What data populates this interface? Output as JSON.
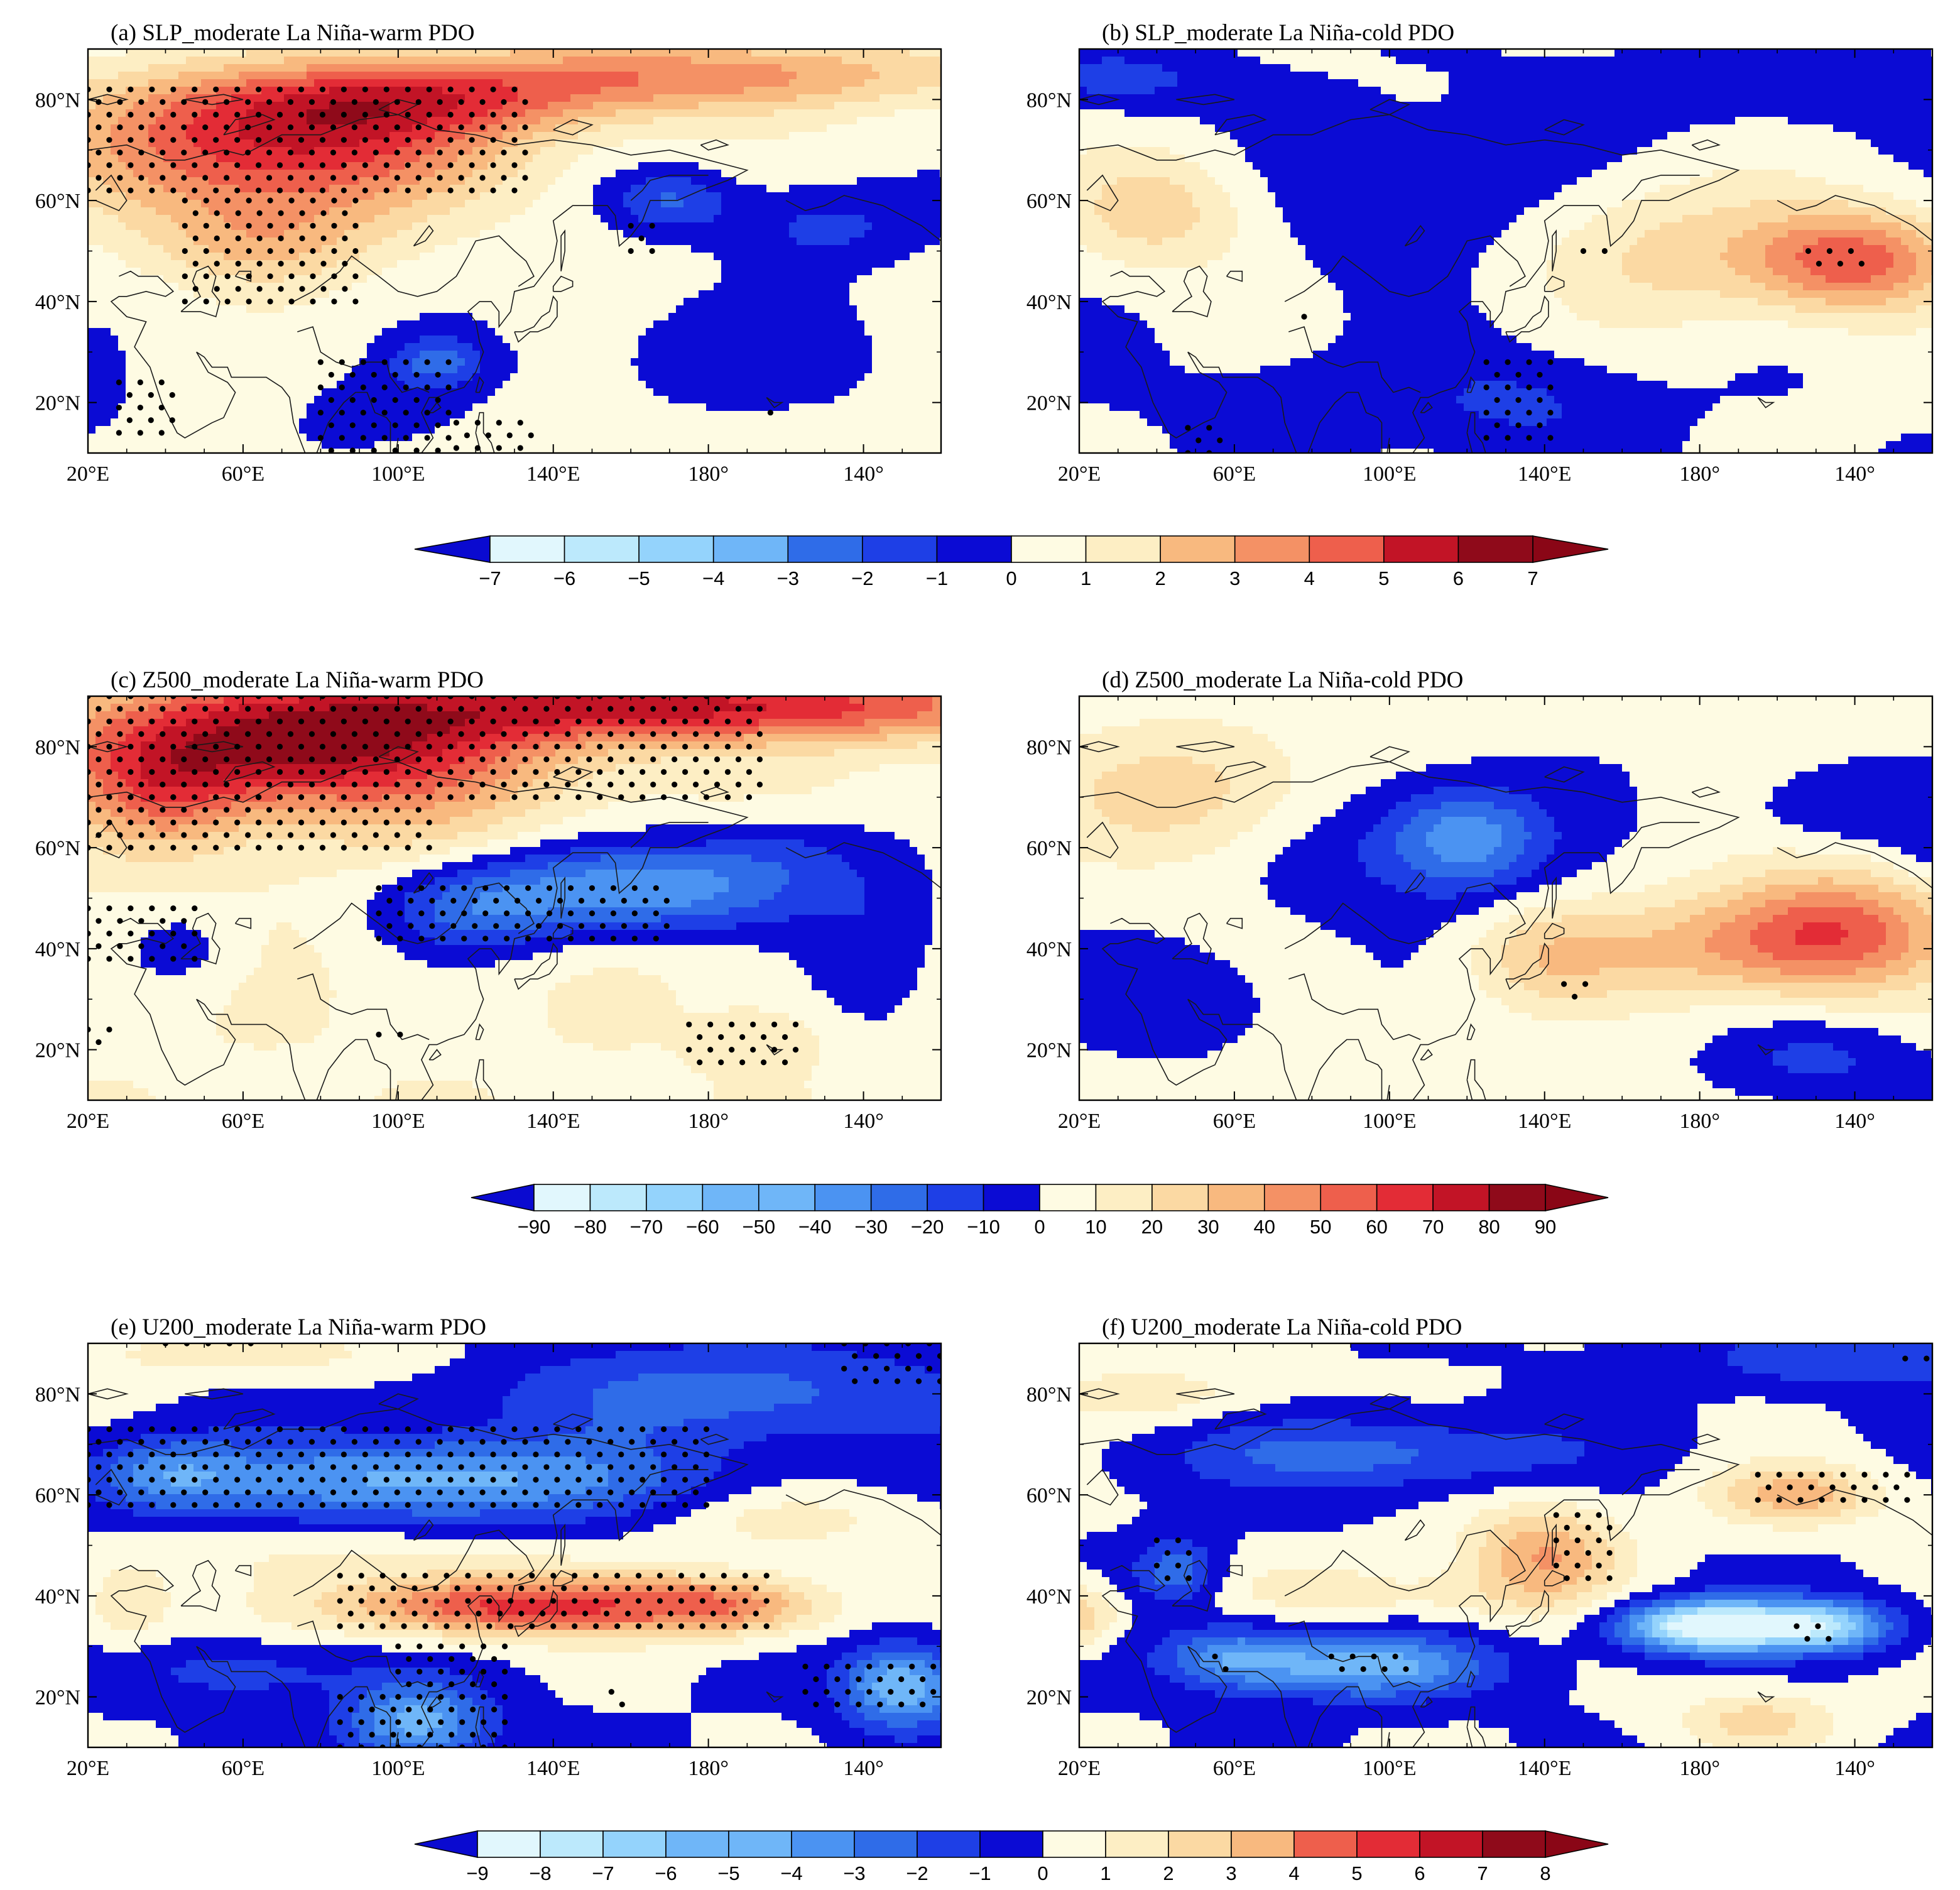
{
  "figure": {
    "panels": [
      {
        "id": "a",
        "title": "(a) SLP_moderate La Niña-warm PDO",
        "variable": "SLP",
        "case": "moderate La Niña-warm PDO"
      },
      {
        "id": "b",
        "title": "(b) SLP_moderate La Niña-cold PDO",
        "variable": "SLP",
        "case": "moderate La Niña-cold PDO"
      },
      {
        "id": "c",
        "title": "(c) Z500_moderate La Niña-warm PDO",
        "variable": "Z500",
        "case": "moderate La Niña-warm PDO"
      },
      {
        "id": "d",
        "title": "(d) Z500_moderate La Niña-cold PDO",
        "variable": "Z500",
        "case": "moderate La Niña-cold PDO"
      },
      {
        "id": "e",
        "title": "(e) U200_moderate La Niña-warm PDO",
        "variable": "U200",
        "case": "moderate La Niña-warm PDO"
      },
      {
        "id": "f",
        "title": "(f) U200_moderate La Niña-cold PDO",
        "variable": "U200",
        "case": "moderate La Niña-cold PDO"
      }
    ],
    "lon_ticks": [
      "20°E",
      "60°E",
      "100°E",
      "140°E",
      "180°",
      "140°"
    ],
    "lat_ticks": [
      "80°N",
      "60°N",
      "40°N",
      "20°N"
    ],
    "colorbars": [
      {
        "id": "slp",
        "labels": [
          "−7",
          "−6",
          "−5",
          "−4",
          "−3",
          "−2",
          "−1",
          "0",
          "1",
          "2",
          "3",
          "4",
          "5",
          "6",
          "7"
        ]
      },
      {
        "id": "z500",
        "labels": [
          "−90",
          "−80",
          "−70",
          "−60",
          "−50",
          "−40",
          "−30",
          "−20",
          "−10",
          "0",
          "10",
          "20",
          "30",
          "40",
          "50",
          "60",
          "70",
          "80",
          "90"
        ]
      },
      {
        "id": "u200",
        "labels": [
          "−9",
          "−8",
          "−7",
          "−6",
          "−5",
          "−4",
          "−3",
          "−2",
          "−1",
          "0",
          "1",
          "2",
          "3",
          "4",
          "5",
          "6",
          "7",
          "8"
        ]
      }
    ],
    "colors": {
      "neg": [
        "#0b0bd4",
        "#1e3fe6",
        "#2f6ce8",
        "#4b93f2",
        "#6fb6f8",
        "#94d3fc",
        "#bce9fc",
        "#e1f7fd"
      ],
      "neutral": "#ffffff",
      "pos": [
        "#fefbe3",
        "#fdeec4",
        "#fbd9a3",
        "#f8b97f",
        "#f49165",
        "#ee5f4c",
        "#e32c36",
        "#c21426",
        "#8f0a1a"
      ]
    }
  }
}
